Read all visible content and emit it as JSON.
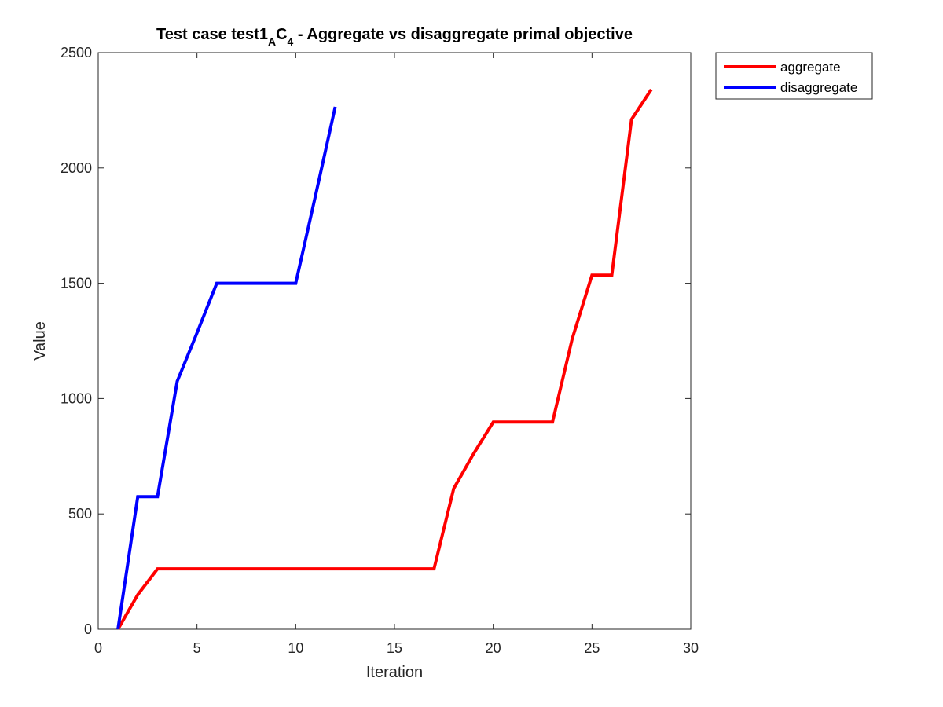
{
  "chart_data": {
    "type": "line",
    "title": {
      "prefix": "Test case test1",
      "sub1": "A",
      "mid": "C",
      "sub2": "4",
      "suffix": " - Aggregate vs disaggregate primal objective"
    },
    "xlabel": "Iteration",
    "ylabel": "Value",
    "xlim": [
      0,
      30
    ],
    "ylim": [
      0,
      2500
    ],
    "xticks": [
      0,
      5,
      10,
      15,
      20,
      25,
      30
    ],
    "yticks": [
      0,
      500,
      1000,
      1500,
      2000,
      2500
    ],
    "grid": false,
    "legend_position": "outside-top-right",
    "series": [
      {
        "name": "aggregate",
        "color": "#ff0000",
        "x": [
          1,
          2,
          3,
          4,
          5,
          6,
          7,
          8,
          9,
          10,
          11,
          12,
          13,
          14,
          15,
          16,
          17,
          18,
          19,
          20,
          21,
          22,
          23,
          24,
          25,
          26,
          27,
          28
        ],
        "y": [
          0,
          150,
          262,
          262,
          262,
          262,
          262,
          262,
          262,
          262,
          262,
          262,
          262,
          262,
          262,
          262,
          262,
          610,
          760,
          898,
          898,
          898,
          898,
          1260,
          1535,
          1535,
          2210,
          2340
        ]
      },
      {
        "name": "disaggregate",
        "color": "#0000ff",
        "x": [
          1,
          2,
          3,
          4,
          5,
          6,
          7,
          8,
          9,
          10,
          11,
          12
        ],
        "y": [
          0,
          575,
          575,
          1075,
          1285,
          1500,
          1500,
          1500,
          1500,
          1500,
          1880,
          2265
        ]
      }
    ]
  }
}
